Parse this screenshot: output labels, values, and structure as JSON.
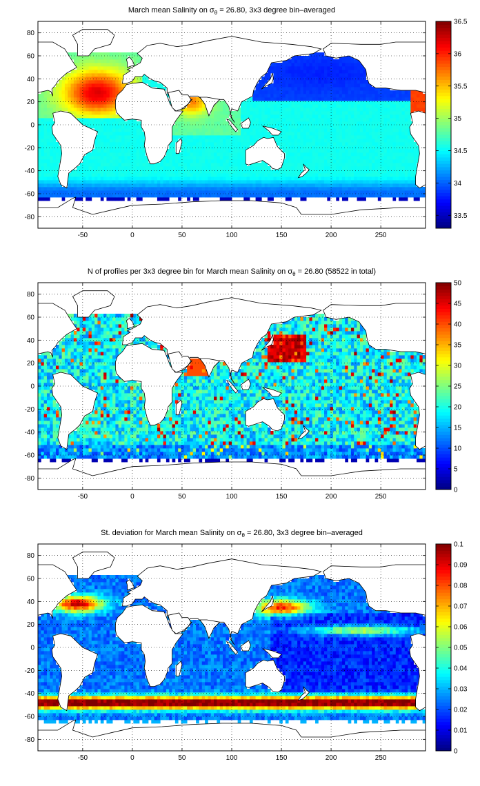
{
  "chart_data": [
    {
      "type": "heatmap",
      "title_parts": [
        "March mean Salinity on σ",
        "θ",
        " = 26.80, 3x3 degree bin–averaged"
      ],
      "xlabel": "",
      "ylabel": "",
      "xlim": [
        -95,
        295
      ],
      "ylim": [
        -90,
        90
      ],
      "xticks": [
        -50,
        0,
        50,
        100,
        150,
        200,
        250
      ],
      "yticks": [
        -80,
        -60,
        -40,
        -20,
        0,
        20,
        40,
        60,
        80
      ],
      "grid": true,
      "colorbar": {
        "min": 33.3,
        "max": 36.5,
        "ticks": [
          33.5,
          34,
          34.5,
          35,
          35.5,
          36,
          36.5
        ]
      },
      "colormap": "jet",
      "bin_deg": 3
    },
    {
      "type": "heatmap",
      "title_parts": [
        "N of profiles per 3x3 degree bin for March mean Salinity on σ",
        "θ",
        " = 26.80 (58522 in total)"
      ],
      "xlabel": "",
      "ylabel": "",
      "xlim": [
        -95,
        295
      ],
      "ylim": [
        -90,
        90
      ],
      "xticks": [
        -50,
        0,
        50,
        100,
        150,
        200,
        250
      ],
      "yticks": [
        -80,
        -60,
        -40,
        -20,
        0,
        20,
        40,
        60,
        80
      ],
      "grid": true,
      "colorbar": {
        "min": 0,
        "max": 50,
        "ticks": [
          0,
          5,
          10,
          15,
          20,
          25,
          30,
          35,
          40,
          45,
          50
        ]
      },
      "colormap": "jet",
      "bin_deg": 3
    },
    {
      "type": "heatmap",
      "title_parts": [
        "St. deviation for March mean Salinity on σ",
        "θ",
        " = 26.80, 3x3 degree bin–averaged"
      ],
      "xlabel": "",
      "ylabel": "",
      "xlim": [
        -95,
        295
      ],
      "ylim": [
        -90,
        90
      ],
      "xticks": [
        -50,
        0,
        50,
        100,
        150,
        200,
        250
      ],
      "yticks": [
        -80,
        -60,
        -40,
        -20,
        0,
        20,
        40,
        60,
        80
      ],
      "grid": true,
      "colorbar": {
        "min": 0,
        "max": 0.1,
        "ticks": [
          0,
          0.01,
          0.02,
          0.03,
          0.04,
          0.05,
          0.06,
          0.07,
          0.08,
          0.09,
          0.1
        ]
      },
      "colormap": "jet",
      "bin_deg": 3
    }
  ]
}
